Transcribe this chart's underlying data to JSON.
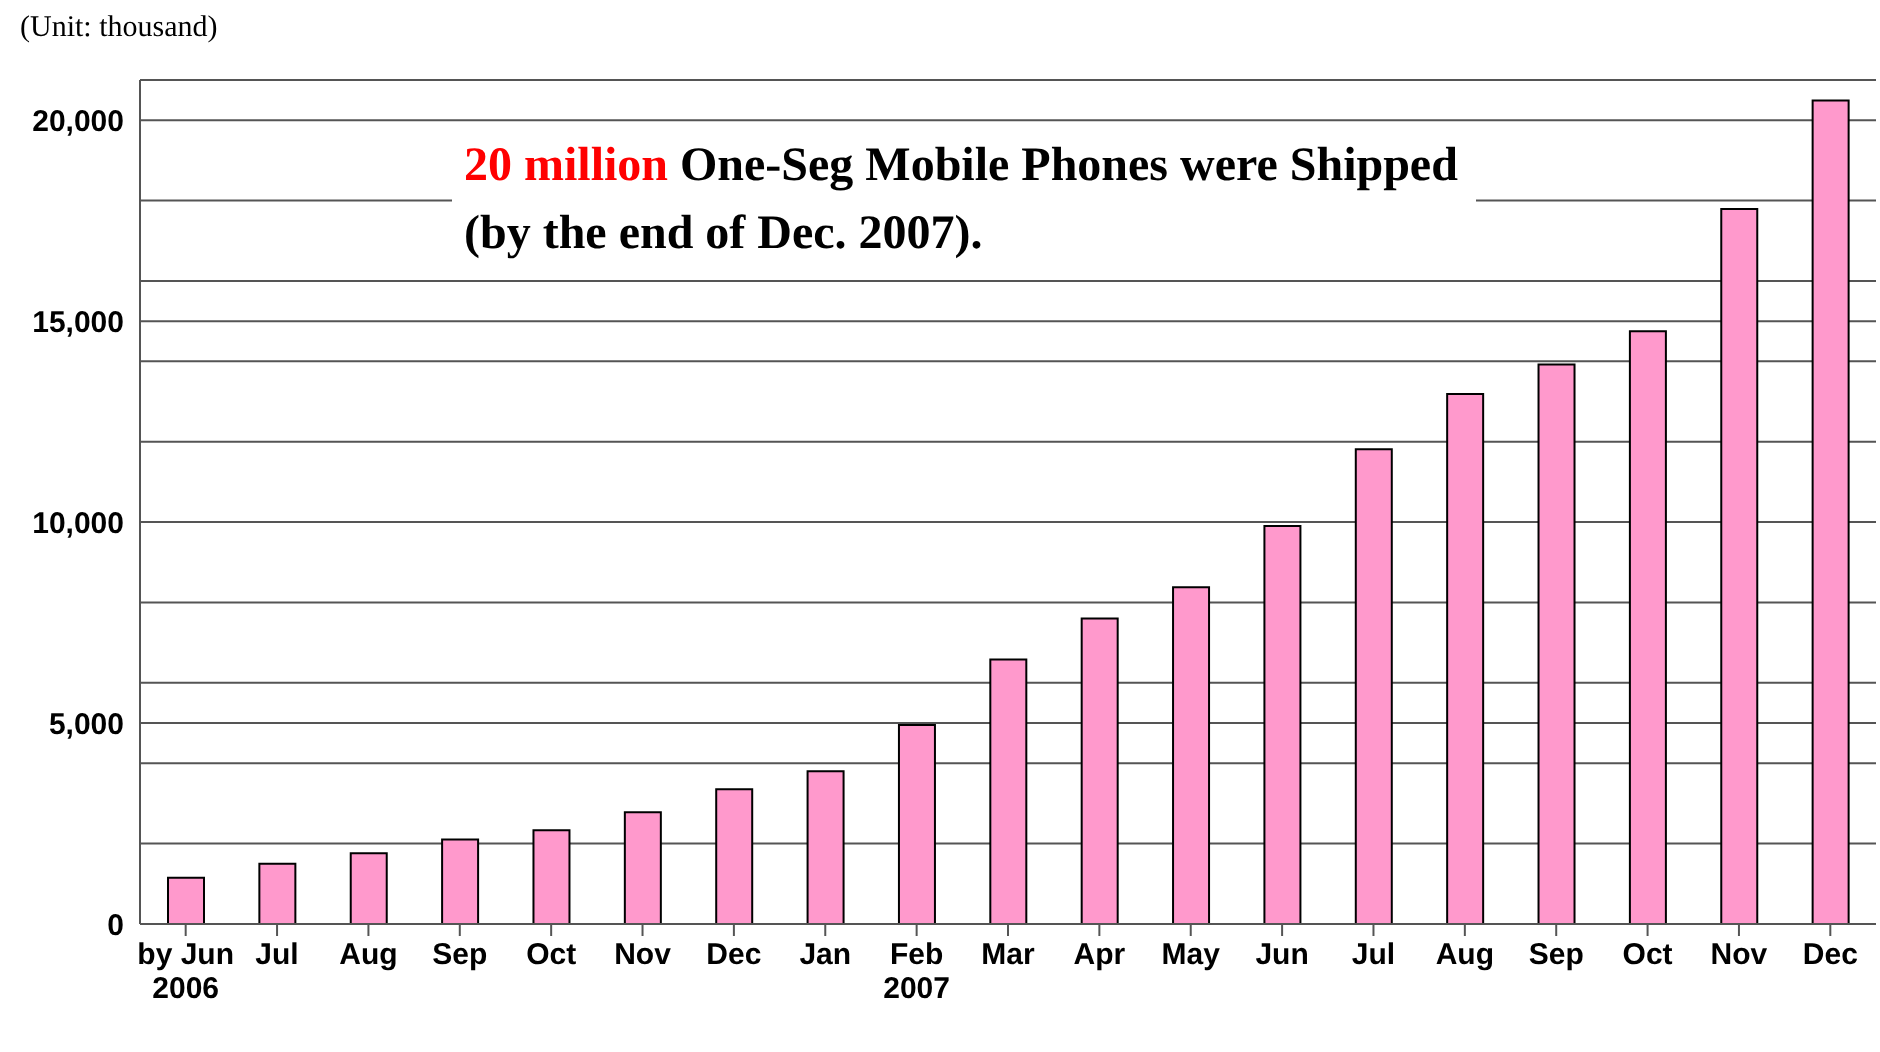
{
  "chart_data": {
    "type": "bar",
    "title": "One-Seg Mobile Phones were Shipped (by the end of Dec. 2007).",
    "annotations": [
      "20 million"
    ],
    "ylabel": "(Unit: thousand)",
    "categories": [
      "by Jun\n2006",
      "Jul",
      "Aug",
      "Sep",
      "Oct",
      "Nov",
      "Dec",
      "Jan",
      "Feb\n2007",
      "Mar",
      "Apr",
      "May",
      "Jun",
      "Jul",
      "Aug",
      "Sep",
      "Oct",
      "Nov",
      "Dec"
    ],
    "values": [
      1150,
      1500,
      1760,
      2100,
      2330,
      2780,
      3350,
      3800,
      4950,
      6580,
      7600,
      8380,
      9900,
      11810,
      13190,
      13920,
      14750,
      17790,
      20490
    ],
    "color": "#ff99cc",
    "ylim": [
      0,
      21000
    ],
    "yticks": [
      0,
      {
        "value": 2000,
        "label": null
      },
      {
        "value": 4000,
        "label": null
      },
      {
        "value": 5000,
        "label": "5,000"
      },
      {
        "value": 6000,
        "label": null
      },
      {
        "value": 8000,
        "label": null
      },
      {
        "value": 10000,
        "label": "10,000"
      },
      {
        "value": 12000,
        "label": null
      },
      {
        "value": 14000,
        "label": null
      },
      {
        "value": 15000,
        "label": "15,000"
      },
      {
        "value": 16000,
        "label": null
      },
      {
        "value": 18000,
        "label": null
      },
      {
        "value": 20000,
        "label": "20,000"
      }
    ],
    "grid": "y"
  }
}
